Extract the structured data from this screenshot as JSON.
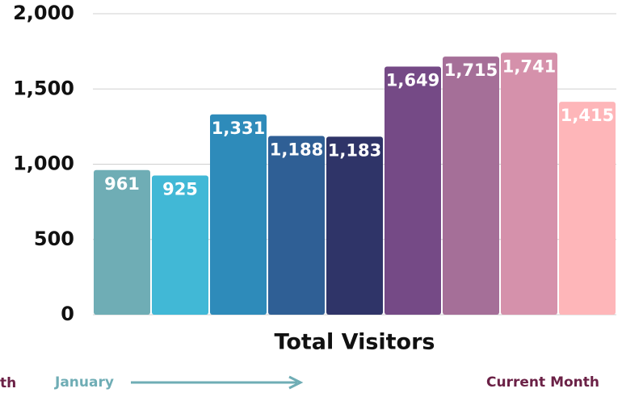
{
  "chart_data": {
    "type": "bar",
    "x_label": "Total Visitors",
    "categories": [
      null,
      null,
      null,
      null,
      null,
      null,
      null,
      null,
      null
    ],
    "values": [
      961,
      925,
      1331,
      1188,
      1183,
      1649,
      1715,
      1741,
      1415
    ],
    "value_labels": [
      "961",
      "925",
      "1,331",
      "1,188",
      "1,183",
      "1,649",
      "1,715",
      "1,741",
      "1,415"
    ],
    "colors": [
      "#6fadb5",
      "#41b8d6",
      "#2e8bba",
      "#2f5f95",
      "#2f3468",
      "#754a86",
      "#a56f98",
      "#d591ab",
      "#feb6b9"
    ],
    "ylim": [
      0,
      2000
    ],
    "yticks": [
      0,
      500,
      {
        "value": 1000,
        "label": "1,000"
      },
      {
        "value": 1500,
        "label": "1,500"
      },
      {
        "value": 2000,
        "label": "2,000"
      }
    ],
    "grid": true,
    "annotations": [
      "th",
      "January",
      "Current Month"
    ]
  }
}
